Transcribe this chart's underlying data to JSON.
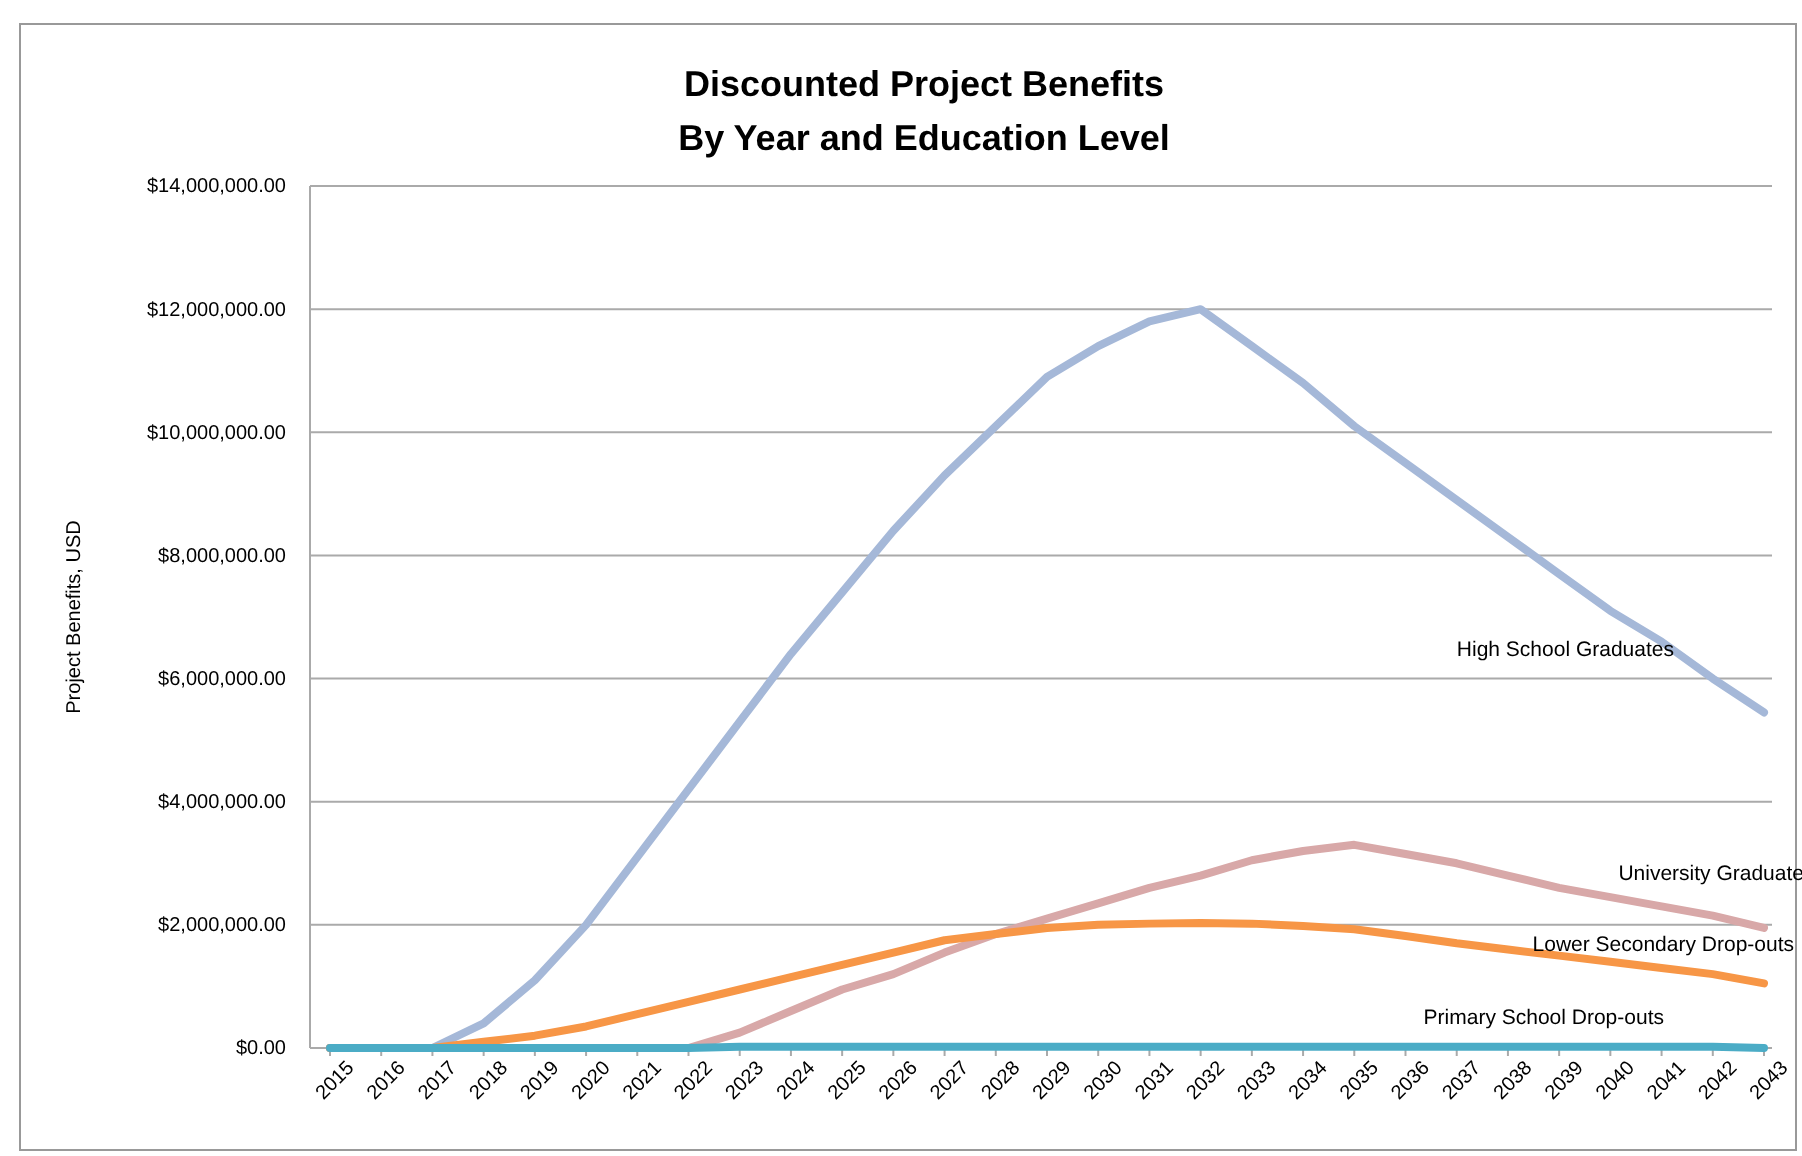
{
  "chart_data": {
    "type": "line",
    "title": "Discounted Project Benefits\nBy Year and Education Level",
    "ylabel": "Project Benefits, USD",
    "categories": [
      "2015",
      "2016",
      "2017",
      "2018",
      "2019",
      "2020",
      "2021",
      "2022",
      "2023",
      "2024",
      "2025",
      "2026",
      "2027",
      "2028",
      "2029",
      "2030",
      "2031",
      "2032",
      "2033",
      "2034",
      "2035",
      "2036",
      "2037",
      "2038",
      "2039",
      "2040",
      "2041",
      "2042",
      "2043"
    ],
    "series": [
      {
        "name": "High School Graduates",
        "color": "#a5b8d8",
        "values": [
          0,
          0,
          0,
          400000,
          1100000,
          2000000,
          3100000,
          4200000,
          5300000,
          6400000,
          7400000,
          8400000,
          9300000,
          10100000,
          10900000,
          11400000,
          11800000,
          12000000,
          11400000,
          10800000,
          10100000,
          9500000,
          8900000,
          8300000,
          7700000,
          7100000,
          6600000,
          6000000,
          5450000
        ]
      },
      {
        "name": "University Graduate",
        "color": "#d8a8a8",
        "values": [
          0,
          0,
          0,
          0,
          0,
          0,
          0,
          0,
          250000,
          600000,
          950000,
          1200000,
          1550000,
          1850000,
          2100000,
          2350000,
          2600000,
          2800000,
          3050000,
          3200000,
          3300000,
          3150000,
          3000000,
          2800000,
          2600000,
          2450000,
          2300000,
          2150000,
          1950000
        ]
      },
      {
        "name": "Lower Secondary Drop-outs",
        "color": "#f79646",
        "values": [
          0,
          0,
          0,
          100000,
          200000,
          350000,
          550000,
          750000,
          950000,
          1150000,
          1350000,
          1550000,
          1750000,
          1850000,
          1950000,
          2000000,
          2020000,
          2030000,
          2020000,
          1980000,
          1930000,
          1820000,
          1700000,
          1600000,
          1500000,
          1400000,
          1300000,
          1200000,
          1050000
        ]
      },
      {
        "name": "Primary School Drop-outs",
        "color": "#4bacc6",
        "values": [
          0,
          0,
          0,
          0,
          0,
          0,
          0,
          0,
          20000,
          20000,
          20000,
          20000,
          20000,
          20000,
          20000,
          20000,
          20000,
          20000,
          20000,
          20000,
          20000,
          20000,
          20000,
          20000,
          20000,
          20000,
          20000,
          20000,
          0
        ]
      }
    ],
    "ylim": [
      0,
      14000000
    ],
    "yticks": [
      {
        "value": 0,
        "label": "$0.00"
      },
      {
        "value": 2000000,
        "label": "$2,000,000.00"
      },
      {
        "value": 4000000,
        "label": "$4,000,000.00"
      },
      {
        "value": 6000000,
        "label": "$6,000,000.00"
      },
      {
        "value": 8000000,
        "label": "$8,000,000.00"
      },
      {
        "value": 10000000,
        "label": "$10,000,000.00"
      },
      {
        "value": 12000000,
        "label": "$12,000,000.00"
      },
      {
        "value": 14000000,
        "label": "$14,000,000.00"
      }
    ],
    "grid": "y",
    "legend": false,
    "marker": "none",
    "line_style": "solid"
  }
}
